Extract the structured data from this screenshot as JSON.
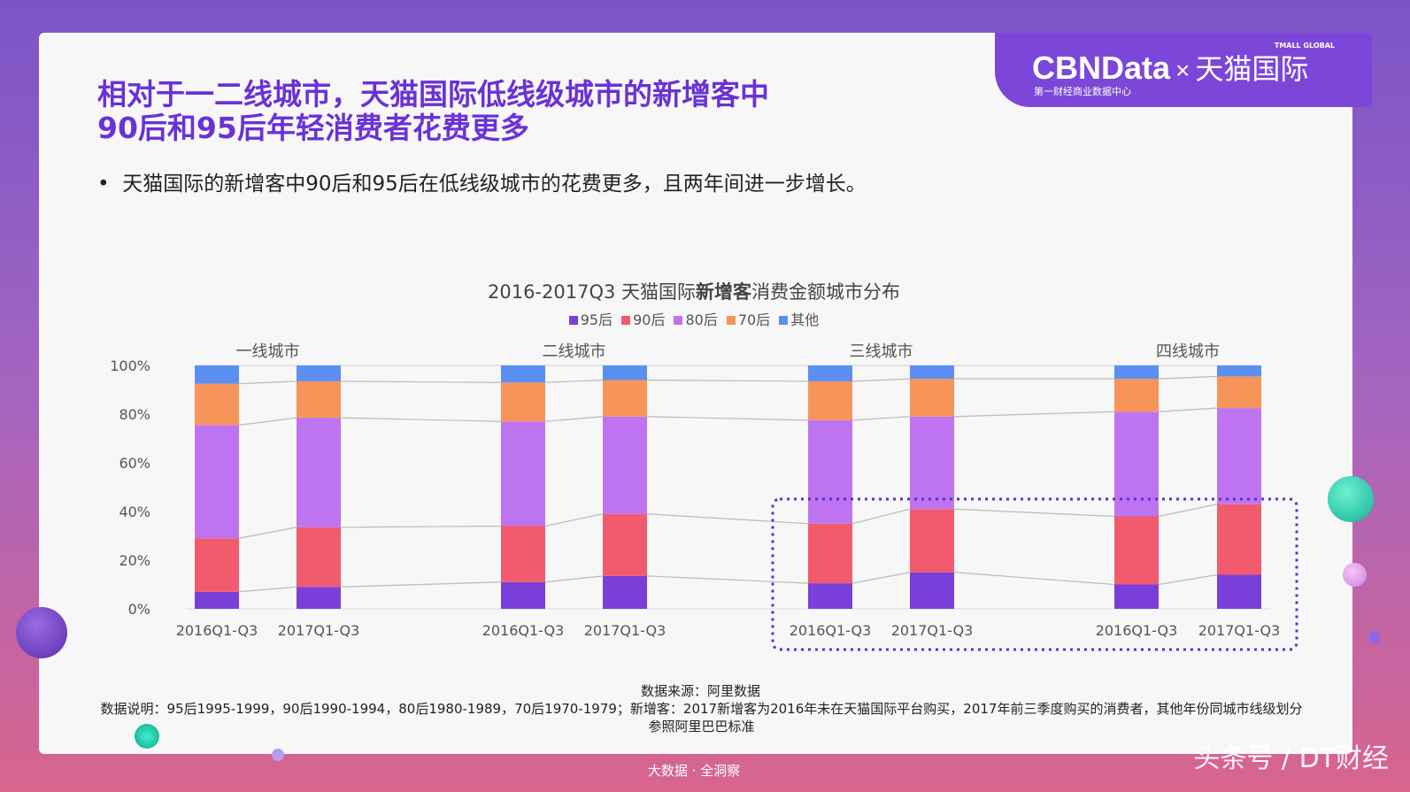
{
  "logo": {
    "brand": "CBNData",
    "x": "×",
    "partner": "天猫国际",
    "tagline": "第一财经商业数据中心",
    "tmall": "TMALL GLOBAL"
  },
  "title_line1": "相对于一二线城市，天猫国际低线级城市的新增客中",
  "title_line2": "90后和95后年轻消费者花费更多",
  "bullet": "天猫国际的新增客中90后和95后在低线级城市的花费更多，且两年间进一步增长。",
  "chart_data": {
    "type": "bar",
    "stacked": true,
    "title_pre": "2016-2017Q3 天猫国际",
    "title_bold": "新增客",
    "title_post": "消费金额城市分布",
    "groups": [
      "一线城市",
      "二线城市",
      "三线城市",
      "四线城市"
    ],
    "categories": [
      "2016Q1-Q3",
      "2017Q1-Q3",
      "2016Q1-Q3",
      "2017Q1-Q3",
      "2016Q1-Q3",
      "2017Q1-Q3",
      "2016Q1-Q3",
      "2017Q1-Q3"
    ],
    "yticks": [
      "0%",
      "20%",
      "40%",
      "60%",
      "80%",
      "100%"
    ],
    "ylim": [
      0,
      100
    ],
    "legend_placement": "top",
    "series": [
      {
        "name": "95后",
        "color": "#7b3fd9",
        "values": [
          7,
          9,
          11,
          13.5,
          10.5,
          15,
          10,
          14
        ]
      },
      {
        "name": "90后",
        "color": "#f25a6e",
        "values": [
          22,
          24.5,
          23,
          25.5,
          24.5,
          26,
          28,
          29
        ]
      },
      {
        "name": "80后",
        "color": "#be74f0",
        "values": [
          46.5,
          45,
          43,
          40,
          42.5,
          38,
          43,
          39.5
        ]
      },
      {
        "name": "70后",
        "color": "#f7945a",
        "values": [
          17,
          15,
          16,
          15,
          16,
          15.5,
          13.5,
          13
        ]
      },
      {
        "name": "其他",
        "color": "#5b8ff2",
        "values": [
          7.5,
          6.5,
          7,
          6,
          6.5,
          5.5,
          5.5,
          4.5
        ]
      }
    ],
    "highlight": "三线城市 and 四线城市 (dotted box)"
  },
  "source": "数据来源：阿里数据",
  "note": "数据说明：95后1995-1999，90后1990-1994，80后1980-1989，70后1970-1979；新增客：2017新增客为2016年未在天猫国际平台购买，2017年前三季度购买的消费者，其他年份同城市线级划分参照阿里巴巴标准",
  "footer": "大数据 · 全洞察",
  "watermark": "头条号 / DT财经"
}
